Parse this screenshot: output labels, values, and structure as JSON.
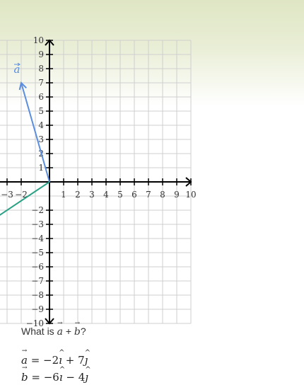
{
  "chart_data": {
    "type": "line",
    "xlim": [
      -3.5,
      10
    ],
    "ylim": [
      -10,
      10
    ],
    "grid": true,
    "x_ticks": [
      -3,
      -2,
      1,
      2,
      3,
      4,
      5,
      6,
      7,
      8,
      9,
      10
    ],
    "y_ticks": [
      10,
      9,
      8,
      7,
      6,
      5,
      4,
      3,
      2,
      1,
      -2,
      -3,
      -4,
      -5,
      -6,
      -7,
      -8,
      -9,
      -10
    ],
    "vectors": [
      {
        "name": "a",
        "from": [
          0,
          0
        ],
        "to": [
          -2,
          7
        ],
        "color": "#5b8ee0"
      },
      {
        "name": "b",
        "from": [
          0,
          0
        ],
        "to": [
          -6,
          -4
        ],
        "color": "#2aa184"
      }
    ],
    "vector_label": "a"
  },
  "question": {
    "prefix": "What is ",
    "a": "a",
    "plus": " + ",
    "b": "b",
    "suffix": "?"
  },
  "equations": {
    "a_name": "a",
    "a_rhs_1": " = −2",
    "a_rhs_2": " + 7",
    "b_name": "b",
    "b_rhs_1": " = −6",
    "b_rhs_2": " − 4",
    "i": "ı",
    "j": "ȷ"
  }
}
